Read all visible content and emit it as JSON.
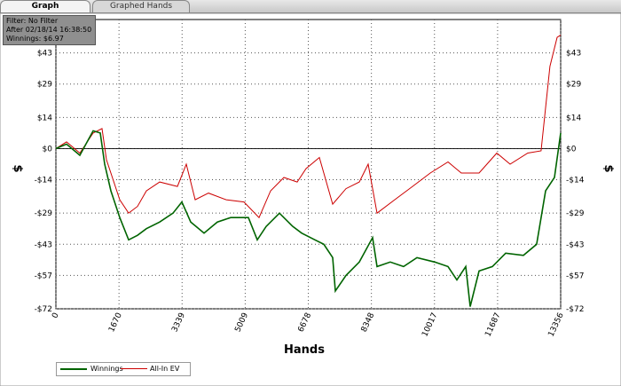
{
  "tabs": [
    "Graph",
    "Graphed Hands"
  ],
  "info": [
    "Filter: No Filter",
    "After 02/18/14 16:38:50",
    "Winnings: $6.97"
  ],
  "chart_data": {
    "type": "line",
    "xlabel": "Hands",
    "ylabel": "$",
    "xlim": [
      0,
      13356
    ],
    "ylim": [
      -72,
      58
    ],
    "xticks": [
      0,
      1670,
      3339,
      5009,
      6678,
      8348,
      10017,
      11687,
      13356
    ],
    "yticks": [
      {
        "value": -72,
        "label": "-$72"
      },
      {
        "value": -57,
        "label": "-$57"
      },
      {
        "value": -43,
        "label": "-$43"
      },
      {
        "value": -29,
        "label": "-$29"
      },
      {
        "value": -14,
        "label": "-$14"
      },
      {
        "value": 0,
        "label": "$0"
      },
      {
        "value": 14,
        "label": "$14"
      },
      {
        "value": 29,
        "label": "$29"
      },
      {
        "value": 43,
        "label": "$43"
      }
    ],
    "grid": true,
    "series": [
      {
        "name": "Winnings",
        "color": "#006400",
        "x": [
          0,
          282,
          634,
          986,
          1174,
          1291,
          1455,
          1690,
          1925,
          2159,
          2394,
          2746,
          3098,
          3333,
          3568,
          3920,
          4272,
          4624,
          5094,
          5329,
          5563,
          5915,
          6267,
          6502,
          6854,
          7088,
          7323,
          7393,
          7675,
          8027,
          8379,
          8496,
          8848,
          9200,
          9553,
          10022,
          10374,
          10609,
          10844,
          10961,
          11196,
          11548,
          11900,
          12369,
          12721,
          12956,
          13191,
          13356
        ],
        "values": [
          0,
          2,
          -3,
          8,
          7,
          -7,
          -19,
          -31,
          -41,
          -39,
          -36,
          -33,
          -29,
          -24,
          -33,
          -38,
          -33,
          -31,
          -31,
          -41,
          -35,
          -29,
          -35,
          -38,
          -41,
          -43,
          -49,
          -64,
          -57,
          -51,
          -40,
          -53,
          -51,
          -53,
          -49,
          -51,
          -53,
          -59,
          -53,
          -71,
          -55,
          -53,
          -47,
          -48,
          -43,
          -19,
          -13,
          7
        ]
      },
      {
        "name": "All-In EV",
        "color": "#cc0000",
        "x": [
          0,
          282,
          634,
          986,
          1220,
          1338,
          1690,
          1925,
          2159,
          2394,
          2746,
          3216,
          3451,
          3685,
          4038,
          4507,
          4976,
          5375,
          5680,
          6032,
          6384,
          6619,
          6971,
          7323,
          7675,
          8027,
          8262,
          8496,
          8965,
          9435,
          9905,
          10374,
          10726,
          11196,
          11665,
          12017,
          12486,
          12838,
          13073,
          13261,
          13356
        ],
        "values": [
          0,
          3,
          -2,
          7,
          9,
          -5,
          -23,
          -29,
          -26,
          -19,
          -15,
          -17,
          -7,
          -23,
          -20,
          -23,
          -24,
          -31,
          -19,
          -13,
          -15,
          -9,
          -4,
          -25,
          -18,
          -15,
          -7,
          -29,
          -23,
          -17,
          -11,
          -6,
          -11,
          -11,
          -2,
          -7,
          -2,
          -1,
          37,
          50,
          51
        ]
      }
    ]
  }
}
